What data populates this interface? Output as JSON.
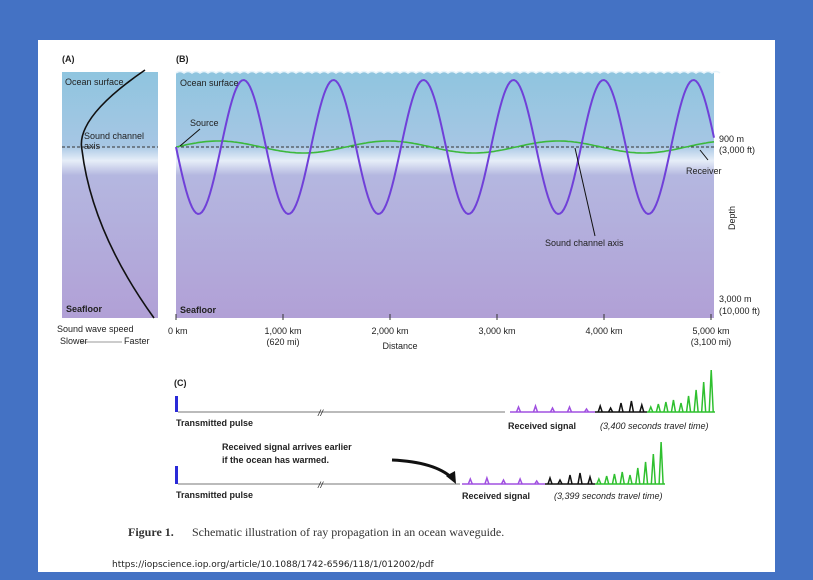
{
  "panel_a": {
    "label": "(A)",
    "surface": "Ocean surface",
    "axis_lines": [
      "Sound channel",
      "axis"
    ],
    "seafloor": "Seafloor",
    "speed_label": "Sound wave speed",
    "slower": "Slower",
    "faster": "Faster"
  },
  "panel_b": {
    "label": "(B)",
    "surface": "Ocean surface",
    "source": "Source",
    "depth_top": [
      "900 m",
      "(3,000 ft)"
    ],
    "receiver": "Receiver",
    "depth": "Depth",
    "axis_label": "Sound channel axis",
    "depth_bottom": [
      "3,000 m",
      "(10,000 ft)"
    ],
    "seafloor": "Seafloor",
    "distance_ticks": [
      "0 km",
      "1,000 km",
      "2,000 km",
      "3,000 km",
      "4,000 km",
      "5,000 km"
    ],
    "distance_sub": [
      "(620 mi)",
      "(3,100 mi)"
    ],
    "distance": "Distance"
  },
  "panel_c": {
    "label": "(C)",
    "row1": {
      "pulse": "Transmitted pulse",
      "signal": "Received signal",
      "time": "(3,400 seconds travel time)"
    },
    "note": [
      "Received signal arrives earlier",
      "if the ocean has warmed."
    ],
    "row2": {
      "pulse": "Transmitted pulse",
      "signal": "Received signal",
      "time": "(3,399 seconds travel time)"
    }
  },
  "caption": {
    "prefix": "Figure 1.",
    "text": "Schematic illustration of ray propagation in an ocean waveguide."
  },
  "url": "https://iopscience.iop.org/article/10.1088/1742-6596/118/1/012002/pdf"
}
